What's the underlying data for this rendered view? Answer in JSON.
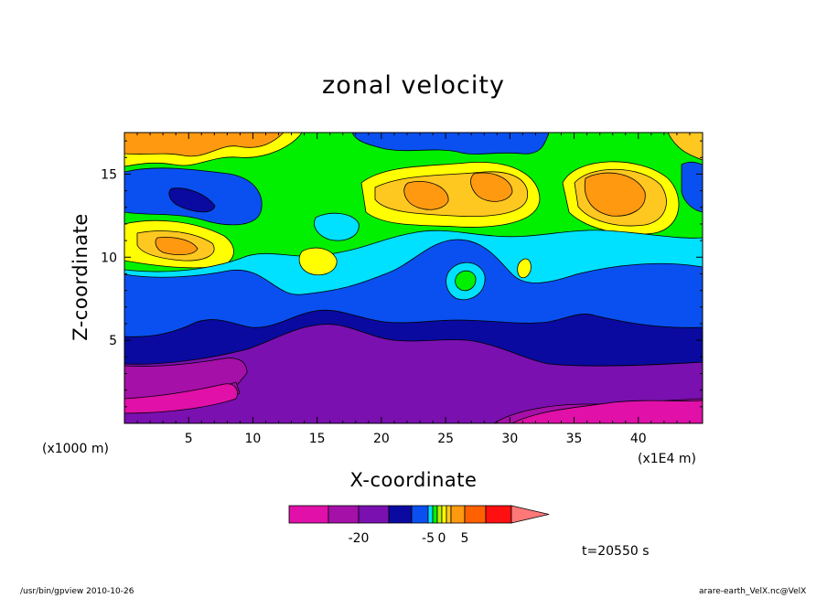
{
  "chart_data": {
    "type": "heatmap",
    "title": "zonal velocity",
    "xlabel": "X-coordinate",
    "ylabel": "Z-coordinate",
    "x_unit_left": "(x1000 m)",
    "x_unit_right": "(x1E4 m)",
    "xlim": [
      0,
      45
    ],
    "ylim": [
      0,
      17.5
    ],
    "xticks": [
      "5",
      "10",
      "15",
      "20",
      "25",
      "30",
      "35",
      "40"
    ],
    "yticks": [
      "5",
      "10",
      "15"
    ],
    "color_levels": [
      -30,
      -25,
      -20,
      -15,
      -10,
      -5,
      -2,
      -1,
      0,
      1,
      2,
      5,
      10,
      15,
      20
    ],
    "colorbar_labels": [
      "-20",
      "-5",
      "0",
      "5"
    ],
    "colorbar_extend": "max",
    "colors": [
      "#e010a8",
      "#a510a8",
      "#7a10b0",
      "#0a0aa0",
      "#0a50f0",
      "#00e0ff",
      "#00f000",
      "#b8f000",
      "#ffff00",
      "#ffc820",
      "#ff9a10",
      "#ff6000",
      "#ff1010",
      "#ff7878"
    ],
    "time_label": "t=20550 s"
  },
  "footer": {
    "left": "/usr/bin/gpview  2010-10-26",
    "right": "arare-earth_VelX.nc@VelX"
  }
}
